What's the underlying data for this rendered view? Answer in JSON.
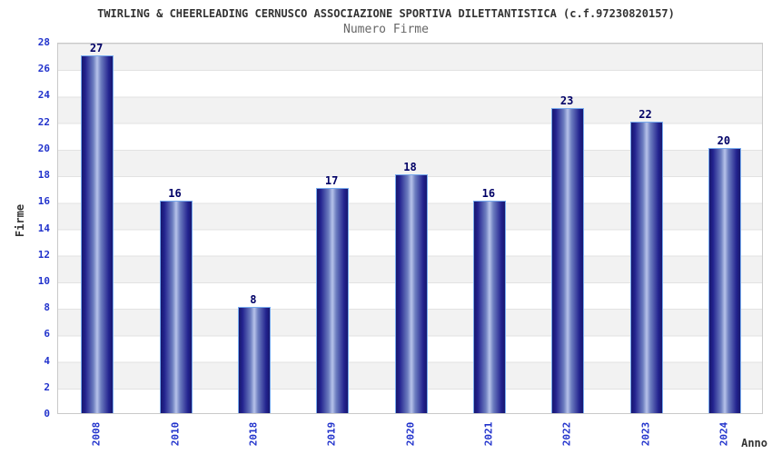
{
  "header": {
    "title": "TWIRLING & CHEERLEADING CERNUSCO ASSOCIAZIONE SPORTIVA DILETTANTISTICA (c.f.97230820157)",
    "subtitle": "Numero Firme"
  },
  "chart_data": {
    "type": "bar",
    "title": "Numero Firme",
    "categories": [
      "2008",
      "2010",
      "2018",
      "2019",
      "2020",
      "2021",
      "2022",
      "2023",
      "2024"
    ],
    "values": [
      27,
      16,
      8,
      17,
      18,
      16,
      23,
      22,
      20
    ],
    "xlabel": "Anno",
    "ylabel": "Firme",
    "ylim": [
      0,
      28
    ],
    "ytick_step": 2,
    "yticks": [
      0,
      2,
      4,
      6,
      8,
      10,
      12,
      14,
      16,
      18,
      20,
      22,
      24,
      26,
      28
    ],
    "grid": "horizontal-bands",
    "legend": "none",
    "colors": {
      "tick_label": "#2233cc",
      "value_label": "#000066",
      "axis_name": "#333333",
      "title": "#333333",
      "subtitle": "#666666",
      "bar_edge": "#17176e",
      "bar_highlight": "#b7c3ea",
      "bar_border": "#77aaee",
      "band_gray": "#f2f2f2",
      "band_white": "#ffffff",
      "plot_border": "#c9c9c9"
    }
  }
}
